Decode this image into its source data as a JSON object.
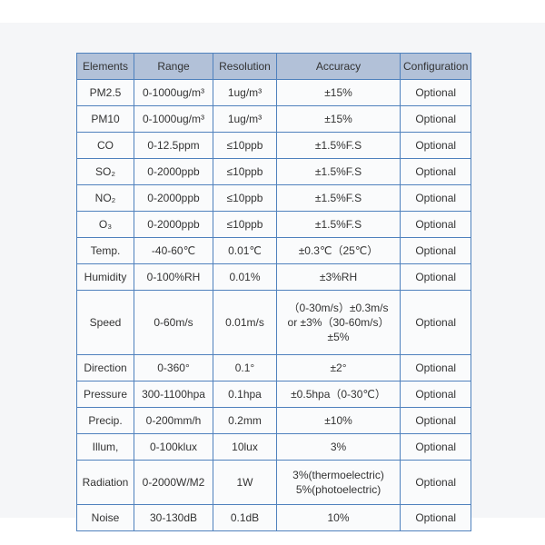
{
  "table": {
    "headers": [
      "Elements",
      "Range",
      "Resolution",
      "Accuracy",
      "Configuration"
    ],
    "rows": [
      {
        "element": "PM2.5",
        "range": "0-1000ug/m³",
        "resolution": "1ug/m³",
        "accuracy": "±15%",
        "configuration": "Optional"
      },
      {
        "element": "PM10",
        "range": "0-1000ug/m³",
        "resolution": "1ug/m³",
        "accuracy": "±15%",
        "configuration": "Optional"
      },
      {
        "element": "CO",
        "range": "0-12.5ppm",
        "resolution": "≤10ppb",
        "accuracy": "±1.5%F.S",
        "configuration": "Optional"
      },
      {
        "element": "SO₂",
        "range": "0-2000ppb",
        "resolution": "≤10ppb",
        "accuracy": "±1.5%F.S",
        "configuration": "Optional"
      },
      {
        "element": "NO₂",
        "range": "0-2000ppb",
        "resolution": "≤10ppb",
        "accuracy": "±1.5%F.S",
        "configuration": "Optional"
      },
      {
        "element": "O₃",
        "range": "0-2000ppb",
        "resolution": "≤10ppb",
        "accuracy": "±1.5%F.S",
        "configuration": "Optional"
      },
      {
        "element": "Temp.",
        "range": "-40-60℃",
        "resolution": "0.01℃",
        "accuracy": "±0.3℃（25℃）",
        "configuration": "Optional"
      },
      {
        "element": "Humidity",
        "range": "0-100%RH",
        "resolution": "0.01%",
        "accuracy": "±3%RH",
        "configuration": "Optional"
      },
      {
        "element": "Speed",
        "range": "0-60m/s",
        "resolution": "0.01m/s",
        "accuracy": "（0-30m/s）±0.3m/s\nor ±3%（30-60m/s）\n±5%",
        "configuration": "Optional"
      },
      {
        "element": "Direction",
        "range": "0-360°",
        "resolution": "0.1°",
        "accuracy": "±2°",
        "configuration": "Optional"
      },
      {
        "element": "Pressure",
        "range": "300-1100hpa",
        "resolution": "0.1hpa",
        "accuracy": "±0.5hpa（0-30℃）",
        "configuration": "Optional"
      },
      {
        "element": "Precip.",
        "range": "0-200mm/h",
        "resolution": "0.2mm",
        "accuracy": "±10%",
        "configuration": "Optional"
      },
      {
        "element": "Illum,",
        "range": "0-100klux",
        "resolution": "10lux",
        "accuracy": "3%",
        "configuration": "Optional"
      },
      {
        "element": "Radiation",
        "range": "0-2000W/M2",
        "resolution": "1W",
        "accuracy": "3%(thermoelectric)\n5%(photoelectric)",
        "configuration": "Optional"
      },
      {
        "element": "Noise",
        "range": "30-130dB",
        "resolution": "0.1dB",
        "accuracy": "10%",
        "configuration": "Optional"
      }
    ]
  },
  "colors": {
    "header_bg": "#b2c1d8",
    "border": "#4f81bd",
    "cell_bg": "#fafbfc",
    "page_band_bg": "#f5f6f8",
    "text": "#333333"
  }
}
